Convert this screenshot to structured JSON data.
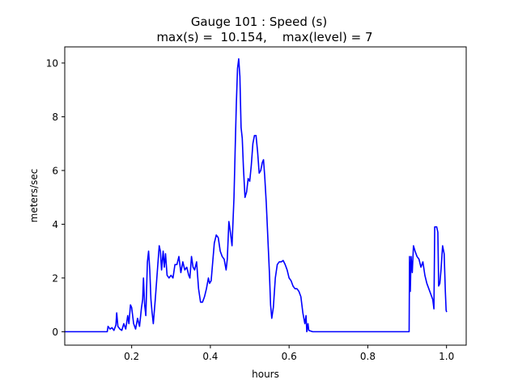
{
  "chart_data": {
    "type": "line",
    "title": "Gauge 101 : Speed (s)",
    "subtitle": "max(s) =  10.154,    max(level) = 7",
    "xlabel": "hours",
    "ylabel": "meters/sec",
    "xlim": [
      0.03,
      1.05
    ],
    "ylim": [
      -0.5,
      10.6
    ],
    "xticks": [
      0.2,
      0.4,
      0.6,
      0.8,
      1.0
    ],
    "xtick_labels": [
      "0.2",
      "0.4",
      "0.6",
      "0.8",
      "1.0"
    ],
    "yticks": [
      0,
      2,
      4,
      6,
      8,
      10
    ],
    "ytick_labels": [
      "0",
      "2",
      "4",
      "6",
      "8",
      "10"
    ],
    "grid": false,
    "series": [
      {
        "color": "#0000ff",
        "points": [
          [
            0.03,
            0.0
          ],
          [
            0.138,
            0.0
          ],
          [
            0.14,
            0.2
          ],
          [
            0.145,
            0.1
          ],
          [
            0.15,
            0.15
          ],
          [
            0.155,
            0.05
          ],
          [
            0.16,
            0.25
          ],
          [
            0.162,
            0.7
          ],
          [
            0.165,
            0.2
          ],
          [
            0.17,
            0.1
          ],
          [
            0.175,
            0.05
          ],
          [
            0.18,
            0.3
          ],
          [
            0.185,
            0.1
          ],
          [
            0.19,
            0.6
          ],
          [
            0.193,
            0.3
          ],
          [
            0.197,
            1.0
          ],
          [
            0.2,
            0.9
          ],
          [
            0.205,
            0.3
          ],
          [
            0.21,
            0.1
          ],
          [
            0.215,
            0.5
          ],
          [
            0.22,
            0.2
          ],
          [
            0.225,
            0.9
          ],
          [
            0.228,
            1.2
          ],
          [
            0.23,
            2.0
          ],
          [
            0.233,
            1.0
          ],
          [
            0.236,
            0.6
          ],
          [
            0.24,
            2.6
          ],
          [
            0.243,
            3.0
          ],
          [
            0.246,
            2.3
          ],
          [
            0.249,
            1.2
          ],
          [
            0.252,
            0.7
          ],
          [
            0.255,
            0.3
          ],
          [
            0.26,
            1.2
          ],
          [
            0.265,
            2.2
          ],
          [
            0.27,
            3.2
          ],
          [
            0.273,
            3.0
          ],
          [
            0.276,
            2.3
          ],
          [
            0.28,
            3.0
          ],
          [
            0.283,
            2.4
          ],
          [
            0.286,
            2.9
          ],
          [
            0.29,
            2.1
          ],
          [
            0.295,
            2.0
          ],
          [
            0.3,
            2.1
          ],
          [
            0.305,
            2.0
          ],
          [
            0.31,
            2.5
          ],
          [
            0.315,
            2.5
          ],
          [
            0.32,
            2.8
          ],
          [
            0.325,
            2.2
          ],
          [
            0.33,
            2.6
          ],
          [
            0.335,
            2.3
          ],
          [
            0.34,
            2.4
          ],
          [
            0.345,
            2.1
          ],
          [
            0.348,
            2.0
          ],
          [
            0.352,
            2.8
          ],
          [
            0.356,
            2.4
          ],
          [
            0.36,
            2.3
          ],
          [
            0.365,
            2.6
          ],
          [
            0.37,
            1.6
          ],
          [
            0.375,
            1.1
          ],
          [
            0.38,
            1.1
          ],
          [
            0.385,
            1.3
          ],
          [
            0.39,
            1.6
          ],
          [
            0.395,
            2.0
          ],
          [
            0.398,
            1.8
          ],
          [
            0.402,
            1.9
          ],
          [
            0.406,
            2.6
          ],
          [
            0.41,
            3.3
          ],
          [
            0.415,
            3.6
          ],
          [
            0.42,
            3.5
          ],
          [
            0.425,
            3.0
          ],
          [
            0.43,
            2.8
          ],
          [
            0.435,
            2.7
          ],
          [
            0.44,
            2.3
          ],
          [
            0.443,
            2.7
          ],
          [
            0.447,
            4.1
          ],
          [
            0.45,
            3.8
          ],
          [
            0.455,
            3.2
          ],
          [
            0.46,
            5.0
          ],
          [
            0.463,
            6.8
          ],
          [
            0.466,
            8.5
          ],
          [
            0.469,
            9.8
          ],
          [
            0.472,
            10.154
          ],
          [
            0.475,
            9.5
          ],
          [
            0.478,
            7.6
          ],
          [
            0.481,
            7.2
          ],
          [
            0.484,
            6.1
          ],
          [
            0.488,
            5.0
          ],
          [
            0.492,
            5.2
          ],
          [
            0.496,
            5.7
          ],
          [
            0.5,
            5.6
          ],
          [
            0.504,
            6.2
          ],
          [
            0.508,
            7.0
          ],
          [
            0.512,
            7.3
          ],
          [
            0.516,
            7.3
          ],
          [
            0.52,
            6.7
          ],
          [
            0.524,
            5.9
          ],
          [
            0.528,
            6.0
          ],
          [
            0.532,
            6.3
          ],
          [
            0.535,
            6.4
          ],
          [
            0.538,
            5.8
          ],
          [
            0.542,
            4.8
          ],
          [
            0.546,
            3.5
          ],
          [
            0.55,
            2.2
          ],
          [
            0.553,
            1.0
          ],
          [
            0.556,
            0.5
          ],
          [
            0.56,
            0.9
          ],
          [
            0.565,
            2.0
          ],
          [
            0.57,
            2.5
          ],
          [
            0.575,
            2.6
          ],
          [
            0.58,
            2.6
          ],
          [
            0.585,
            2.65
          ],
          [
            0.59,
            2.5
          ],
          [
            0.595,
            2.3
          ],
          [
            0.6,
            2.0
          ],
          [
            0.605,
            1.9
          ],
          [
            0.61,
            1.7
          ],
          [
            0.615,
            1.6
          ],
          [
            0.62,
            1.6
          ],
          [
            0.625,
            1.5
          ],
          [
            0.63,
            1.3
          ],
          [
            0.635,
            0.7
          ],
          [
            0.64,
            0.3
          ],
          [
            0.643,
            0.6
          ],
          [
            0.645,
            0.0
          ],
          [
            0.648,
            0.3
          ],
          [
            0.65,
            0.05
          ],
          [
            0.66,
            0.0
          ],
          [
            0.905,
            0.0
          ],
          [
            0.906,
            2.8
          ],
          [
            0.908,
            1.5
          ],
          [
            0.91,
            2.8
          ],
          [
            0.913,
            2.2
          ],
          [
            0.916,
            3.2
          ],
          [
            0.92,
            3.0
          ],
          [
            0.925,
            2.8
          ],
          [
            0.93,
            2.7
          ],
          [
            0.935,
            2.4
          ],
          [
            0.94,
            2.6
          ],
          [
            0.945,
            2.1
          ],
          [
            0.95,
            1.8
          ],
          [
            0.955,
            1.6
          ],
          [
            0.96,
            1.4
          ],
          [
            0.965,
            1.2
          ],
          [
            0.968,
            0.85
          ],
          [
            0.97,
            3.9
          ],
          [
            0.975,
            3.9
          ],
          [
            0.978,
            3.7
          ],
          [
            0.98,
            1.7
          ],
          [
            0.983,
            1.8
          ],
          [
            0.986,
            2.3
          ],
          [
            0.99,
            3.2
          ],
          [
            0.994,
            2.9
          ],
          [
            0.997,
            1.5
          ],
          [
            0.999,
            0.8
          ],
          [
            1.0,
            0.75
          ]
        ]
      }
    ]
  }
}
